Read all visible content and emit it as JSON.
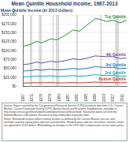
{
  "chart_data": {
    "type": "line",
    "title": "Mean Quintile Household Income, 1967-2013",
    "subtitle": "Mean Quintile Income (in 2013 dollars)",
    "x": [
      1967,
      1970,
      1973,
      1975,
      1979,
      1982,
      1985,
      1989,
      1992,
      1995,
      1999,
      2001,
      2004,
      2007,
      2010,
      2013
    ],
    "xlim": [
      1967,
      2013
    ],
    "xticks": [
      1967,
      1971,
      1975,
      1979,
      1983,
      1987,
      1991,
      1995,
      1999,
      2003,
      2007,
      2011
    ],
    "ylim": [
      0,
      200000
    ],
    "yticks": [
      {
        "value": 0,
        "label": "$0"
      },
      {
        "value": 25000,
        "label": "$25,000"
      },
      {
        "value": 50000,
        "label": "$50,000"
      },
      {
        "value": 75000,
        "label": "$75,000"
      },
      {
        "value": 100000,
        "label": "$100,000"
      },
      {
        "value": 125000,
        "label": "$125,000"
      },
      {
        "value": 150000,
        "label": "$150,000"
      },
      {
        "value": 175000,
        "label": "$175,000"
      },
      {
        "value": 200000,
        "label": "$200,000"
      }
    ],
    "grid": true,
    "recessions": [
      [
        1969.9,
        1970.9
      ],
      [
        1973.9,
        1975.2
      ],
      [
        1980.0,
        1980.5
      ],
      [
        1981.5,
        1982.9
      ],
      [
        1990.5,
        1991.2
      ],
      [
        2001.2,
        2001.9
      ],
      [
        2007.9,
        2009.5
      ]
    ],
    "series": [
      {
        "name": "Top Quintile",
        "color": "#2f8f3a",
        "values": [
          113000,
          118000,
          127000,
          122000,
          133000,
          131000,
          141000,
          158000,
          155000,
          170000,
          190000,
          188000,
          182000,
          185000,
          178000,
          185000
        ]
      },
      {
        "name": "4th Quintile",
        "color": "#6a4c9c",
        "values": [
          62000,
          64000,
          69000,
          66000,
          71000,
          69000,
          72000,
          78000,
          76000,
          79000,
          86000,
          85000,
          84000,
          84000,
          79000,
          80000
        ]
      },
      {
        "name": "3rd Quintile",
        "color": "#1f77b4",
        "values": [
          44000,
          45000,
          48000,
          46000,
          49000,
          47000,
          48000,
          51000,
          49000,
          51000,
          56000,
          55000,
          54000,
          54000,
          51000,
          52000
        ]
      },
      {
        "name": "2nd Quintile",
        "color": "#17a2b8",
        "values": [
          28000,
          28500,
          30000,
          29000,
          30500,
          28500,
          29500,
          31000,
          29500,
          30500,
          33500,
          32500,
          31500,
          31500,
          29500,
          30000
        ]
      },
      {
        "name": "Bottom Quintile",
        "color": "#c0392b",
        "values": [
          10500,
          10800,
          11500,
          11200,
          11800,
          10800,
          11000,
          11800,
          11000,
          11600,
          13000,
          12500,
          12000,
          12000,
          11300,
          11700
        ]
      }
    ],
    "source": "Source: Figure created by the Congressional Research Service (CRS) based on data from U.S. Census Bureau, Current Population Survey (CPS), Annual Social and Economic Supplements, available at http://www.census.gov/hhes/www/income/data/historical/household/. Recession dates are from the National Bureau of Economic Research at http://www.nber.org/cycles.html.",
    "notes": "Notes: Household income reflects money income as defined by the Census Bureau; pre-tax, and excludes realized capital gains and non-cash benefits. Shaded areas indicate recessions. Income values are adjusted to 2013 dollars. Methodological changes in the CPS affect comparisons across some years."
  }
}
